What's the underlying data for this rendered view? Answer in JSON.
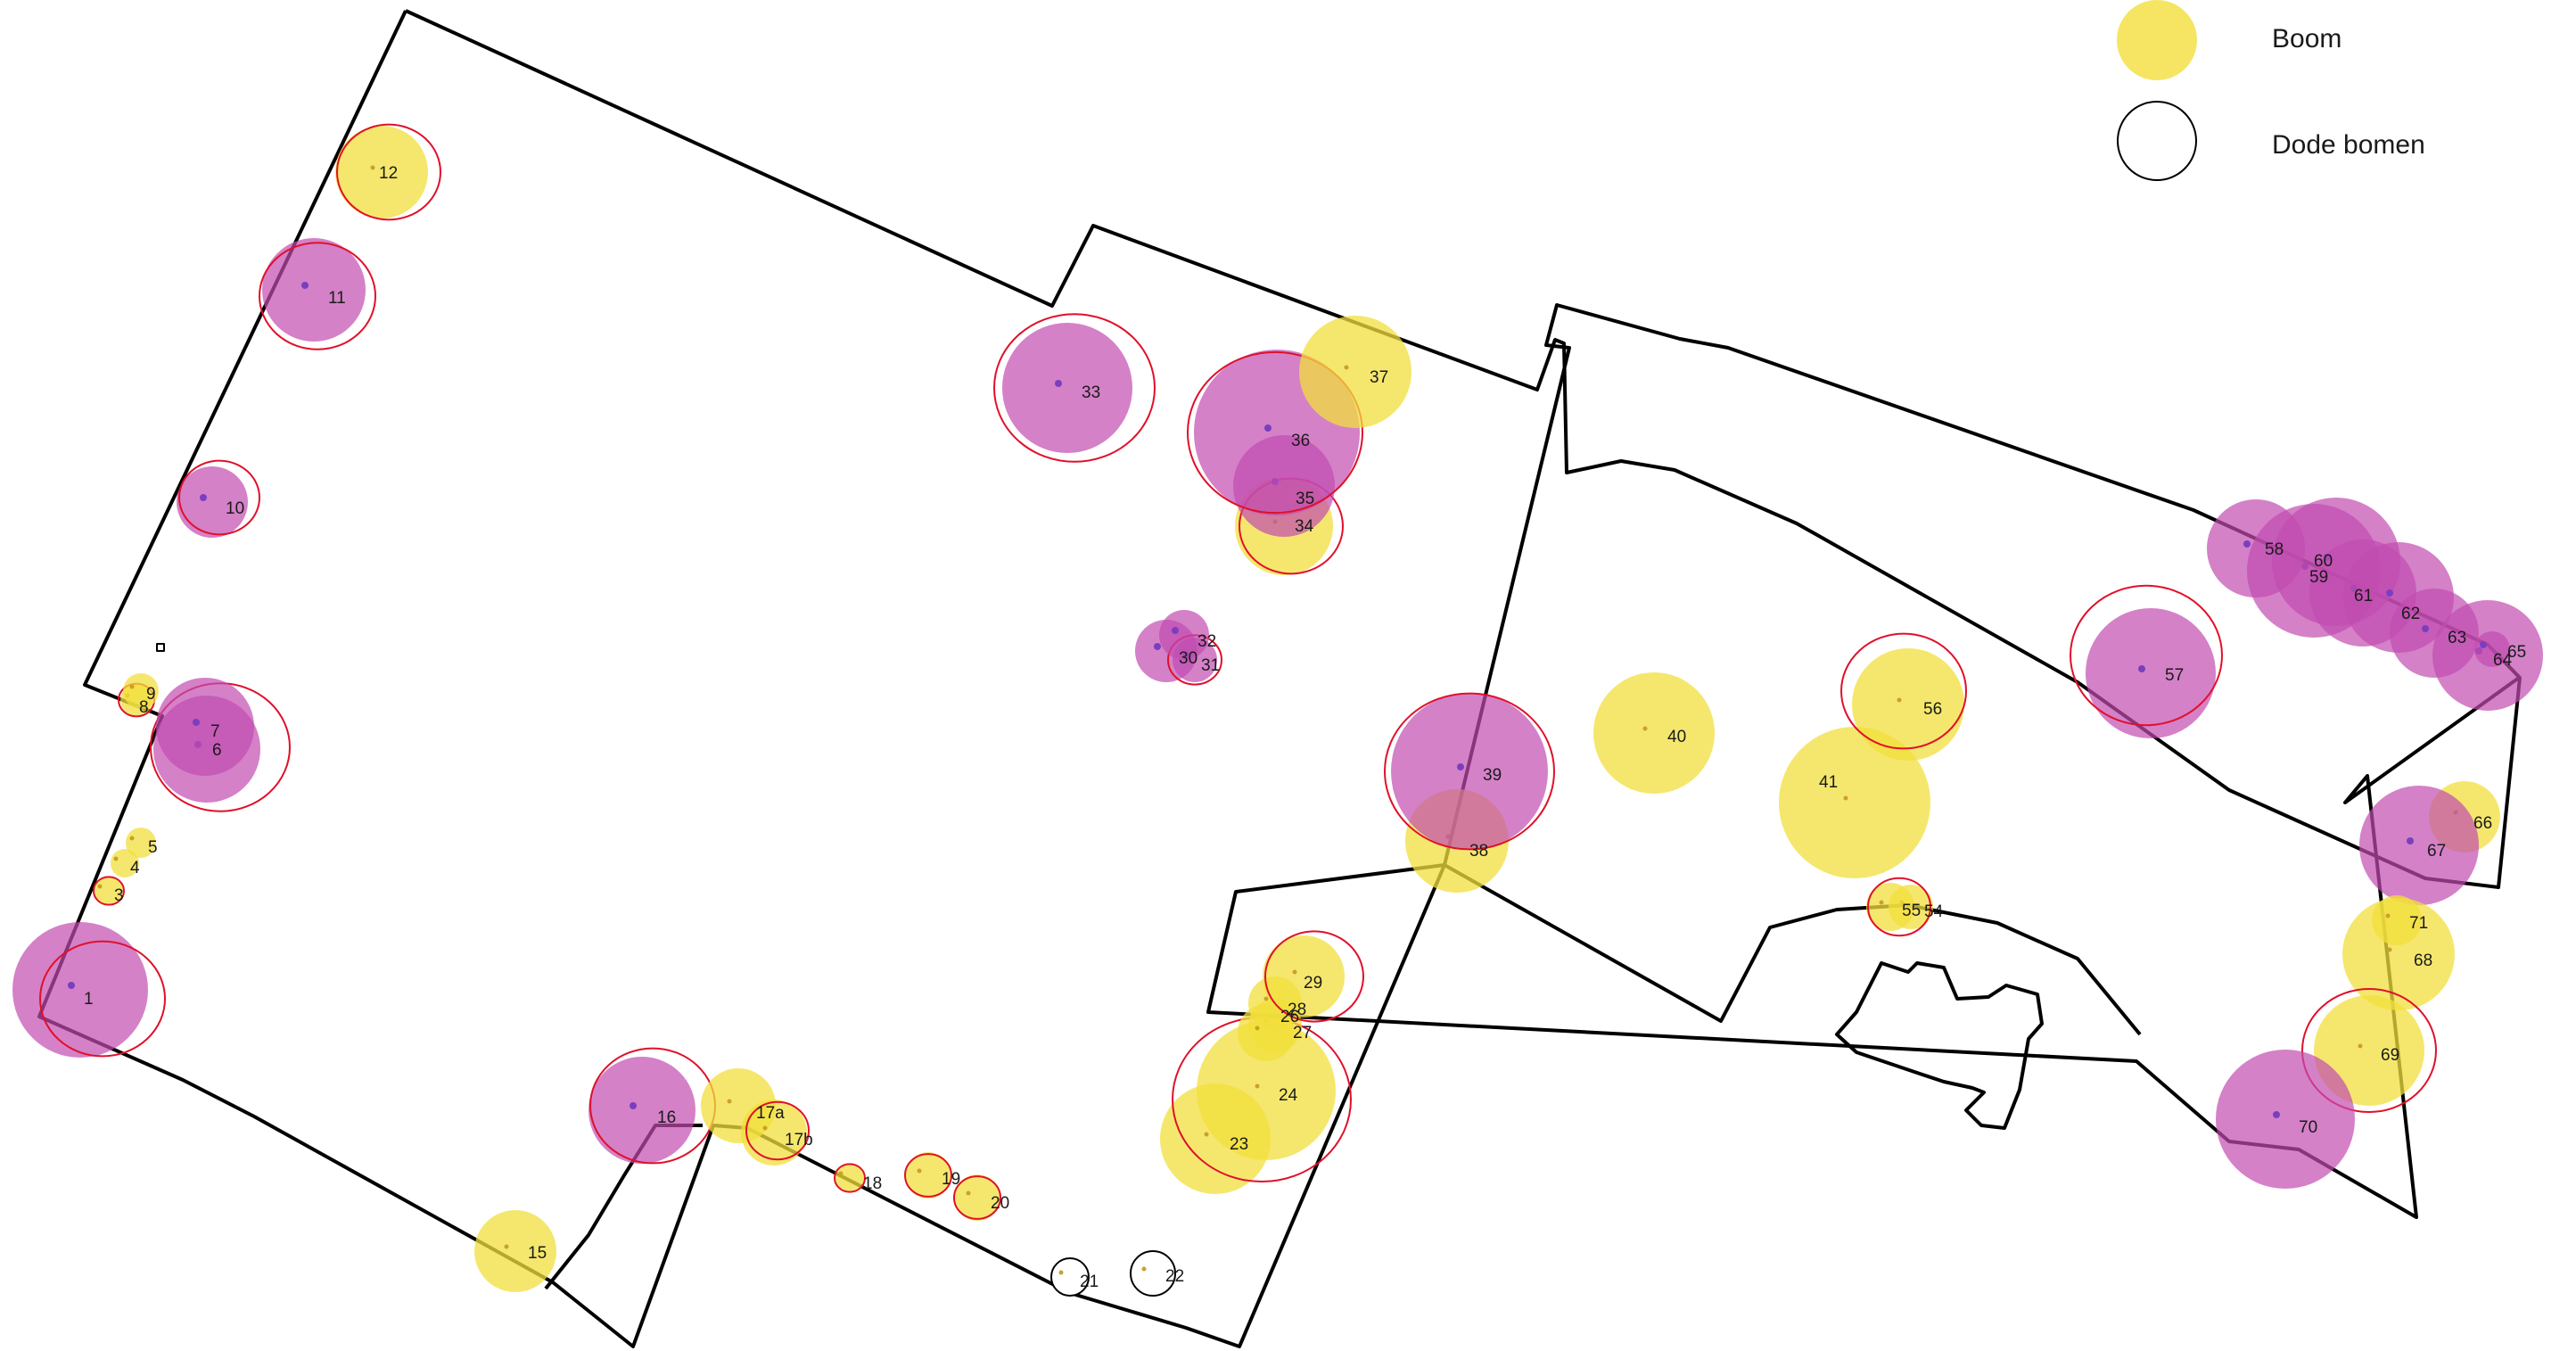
{
  "legend": {
    "items": [
      {
        "label": "Boom",
        "symbol": "yellow-circle"
      },
      {
        "label": "Dode bomen",
        "symbol": "hollow-circle"
      }
    ]
  },
  "colors": {
    "boom_fill": "#f2df3c",
    "purple_fill": "#c24bb0",
    "outline": "#e0102a",
    "boundary": "#000000"
  },
  "trees": [
    {
      "id": "1",
      "kind": "purple"
    },
    {
      "id": "3",
      "kind": "boom"
    },
    {
      "id": "4",
      "kind": "boom"
    },
    {
      "id": "5",
      "kind": "boom"
    },
    {
      "id": "6",
      "kind": "purple"
    },
    {
      "id": "7",
      "kind": "purple"
    },
    {
      "id": "8",
      "kind": "boom"
    },
    {
      "id": "9",
      "kind": "boom"
    },
    {
      "id": "10",
      "kind": "purple"
    },
    {
      "id": "11",
      "kind": "purple"
    },
    {
      "id": "12",
      "kind": "boom"
    },
    {
      "id": "15",
      "kind": "boom"
    },
    {
      "id": "16",
      "kind": "purple"
    },
    {
      "id": "17a",
      "kind": "boom"
    },
    {
      "id": "17b",
      "kind": "boom"
    },
    {
      "id": "18",
      "kind": "boom"
    },
    {
      "id": "19",
      "kind": "boom"
    },
    {
      "id": "20",
      "kind": "boom"
    },
    {
      "id": "21",
      "kind": "dead"
    },
    {
      "id": "22",
      "kind": "dead"
    },
    {
      "id": "23",
      "kind": "boom"
    },
    {
      "id": "24",
      "kind": "boom"
    },
    {
      "id": "26",
      "kind": "boom"
    },
    {
      "id": "27",
      "kind": "boom"
    },
    {
      "id": "28",
      "kind": "boom"
    },
    {
      "id": "29",
      "kind": "boom"
    },
    {
      "id": "30",
      "kind": "purple"
    },
    {
      "id": "31",
      "kind": "purple"
    },
    {
      "id": "32",
      "kind": "purple"
    },
    {
      "id": "33",
      "kind": "purple"
    },
    {
      "id": "34",
      "kind": "boom"
    },
    {
      "id": "35",
      "kind": "purple"
    },
    {
      "id": "36",
      "kind": "purple"
    },
    {
      "id": "37",
      "kind": "boom"
    },
    {
      "id": "38",
      "kind": "boom"
    },
    {
      "id": "39",
      "kind": "purple"
    },
    {
      "id": "40",
      "kind": "boom"
    },
    {
      "id": "41",
      "kind": "boom"
    },
    {
      "id": "54",
      "kind": "boom"
    },
    {
      "id": "55",
      "kind": "boom"
    },
    {
      "id": "56",
      "kind": "boom"
    },
    {
      "id": "57",
      "kind": "purple"
    },
    {
      "id": "58",
      "kind": "purple"
    },
    {
      "id": "59",
      "kind": "purple"
    },
    {
      "id": "60",
      "kind": "purple"
    },
    {
      "id": "61",
      "kind": "purple"
    },
    {
      "id": "62",
      "kind": "purple"
    },
    {
      "id": "63",
      "kind": "purple"
    },
    {
      "id": "64",
      "kind": "purple"
    },
    {
      "id": "65",
      "kind": "purple"
    },
    {
      "id": "66",
      "kind": "boom"
    },
    {
      "id": "67",
      "kind": "purple"
    },
    {
      "id": "68",
      "kind": "boom"
    },
    {
      "id": "69",
      "kind": "boom"
    },
    {
      "id": "70",
      "kind": "purple"
    },
    {
      "id": "71",
      "kind": "boom"
    }
  ]
}
